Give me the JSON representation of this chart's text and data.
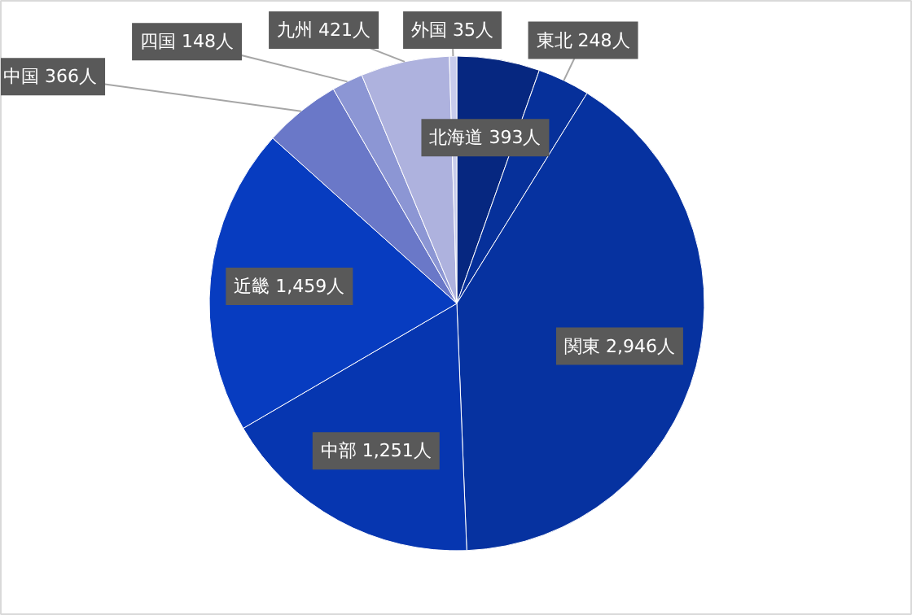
{
  "chart_data": {
    "type": "pie",
    "categories": [
      "北海道",
      "東北",
      "関東",
      "中部",
      "近畿",
      "中国",
      "四国",
      "九州",
      "外国"
    ],
    "values": [
      393,
      248,
      2946,
      1251,
      1459,
      366,
      148,
      421,
      35
    ],
    "value_labels": [
      "393人",
      "248人",
      "2,946人",
      "1,251人",
      "1,459人",
      "366人",
      "148人",
      "421人",
      "35人"
    ],
    "colors": [
      "#062780",
      "#06309a",
      "#0632a0",
      "#0636b0",
      "#073cc0",
      "#6a78c8",
      "#8c96d4",
      "#aeb2de",
      "#c8ccec"
    ]
  }
}
